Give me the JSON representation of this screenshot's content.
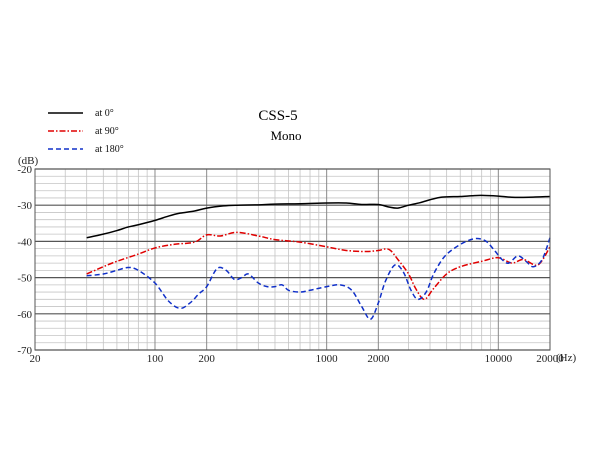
{
  "chart_data": {
    "type": "line",
    "title": "CSS-5",
    "subtitle": "Mono",
    "y_unit_label": "(dB)",
    "x_unit_label": "(Hz)",
    "x_scale": "log",
    "xlim": [
      20,
      20000
    ],
    "ylim": [
      -70,
      -20
    ],
    "grid": true,
    "legend_position": "top-left",
    "x_tick_labels": [
      {
        "value": 20,
        "label": "20"
      },
      {
        "value": 100,
        "label": "100"
      },
      {
        "value": 200,
        "label": "200"
      },
      {
        "value": 1000,
        "label": "1000"
      },
      {
        "value": 2000,
        "label": "2000"
      },
      {
        "value": 10000,
        "label": "10000"
      },
      {
        "value": 20000,
        "label": "20000"
      }
    ],
    "y_tick_labels": [
      {
        "value": -20,
        "label": "-20"
      },
      {
        "value": -30,
        "label": "-30"
      },
      {
        "value": -40,
        "label": "-40"
      },
      {
        "value": -50,
        "label": "-50"
      },
      {
        "value": -60,
        "label": "-60"
      },
      {
        "value": -70,
        "label": "-70"
      }
    ],
    "series": [
      {
        "name": "at 0°",
        "color": "#000000",
        "style": "solid",
        "points": [
          [
            40,
            -39.0
          ],
          [
            50,
            -38.0
          ],
          [
            60,
            -37.0
          ],
          [
            70,
            -36.0
          ],
          [
            80,
            -35.4
          ],
          [
            100,
            -34.2
          ],
          [
            120,
            -33.0
          ],
          [
            140,
            -32.2
          ],
          [
            170,
            -31.6
          ],
          [
            200,
            -30.8
          ],
          [
            250,
            -30.2
          ],
          [
            300,
            -30.0
          ],
          [
            400,
            -29.9
          ],
          [
            500,
            -29.7
          ],
          [
            700,
            -29.6
          ],
          [
            1000,
            -29.4
          ],
          [
            1300,
            -29.4
          ],
          [
            1600,
            -29.8
          ],
          [
            2000,
            -29.8
          ],
          [
            2300,
            -30.5
          ],
          [
            2600,
            -30.8
          ],
          [
            3000,
            -30.0
          ],
          [
            3500,
            -29.3
          ],
          [
            4000,
            -28.5
          ],
          [
            4500,
            -27.9
          ],
          [
            5000,
            -27.7
          ],
          [
            6000,
            -27.6
          ],
          [
            7000,
            -27.4
          ],
          [
            8000,
            -27.3
          ],
          [
            10000,
            -27.5
          ],
          [
            12000,
            -27.8
          ],
          [
            15000,
            -27.8
          ],
          [
            20000,
            -27.6
          ]
        ]
      },
      {
        "name": "at 90°",
        "color": "#e00000",
        "style": "dash-dot",
        "points": [
          [
            40,
            -49.0
          ],
          [
            50,
            -47.0
          ],
          [
            60,
            -45.5
          ],
          [
            80,
            -43.5
          ],
          [
            100,
            -41.8
          ],
          [
            130,
            -40.8
          ],
          [
            170,
            -40.2
          ],
          [
            200,
            -38.2
          ],
          [
            240,
            -38.5
          ],
          [
            300,
            -37.5
          ],
          [
            400,
            -38.5
          ],
          [
            500,
            -39.5
          ],
          [
            700,
            -40.2
          ],
          [
            1000,
            -41.5
          ],
          [
            1300,
            -42.5
          ],
          [
            1700,
            -42.8
          ],
          [
            2000,
            -42.5
          ],
          [
            2300,
            -42.2
          ],
          [
            2600,
            -45.0
          ],
          [
            3000,
            -49.0
          ],
          [
            3300,
            -53.0
          ],
          [
            3700,
            -56.0
          ],
          [
            4200,
            -53.0
          ],
          [
            5000,
            -49.0
          ],
          [
            6000,
            -47.0
          ],
          [
            8000,
            -45.5
          ],
          [
            10000,
            -44.5
          ],
          [
            12000,
            -46.0
          ],
          [
            14000,
            -45.0
          ],
          [
            17000,
            -46.5
          ],
          [
            20000,
            -41.5
          ]
        ]
      },
      {
        "name": "at 180°",
        "color": "#1030c8",
        "style": "dashed",
        "points": [
          [
            40,
            -49.5
          ],
          [
            50,
            -49.0
          ],
          [
            60,
            -48.0
          ],
          [
            70,
            -47.2
          ],
          [
            80,
            -48.0
          ],
          [
            100,
            -51.5
          ],
          [
            120,
            -56.5
          ],
          [
            140,
            -58.5
          ],
          [
            160,
            -57.0
          ],
          [
            180,
            -54.5
          ],
          [
            200,
            -52.5
          ],
          [
            230,
            -47.5
          ],
          [
            260,
            -48.0
          ],
          [
            290,
            -50.5
          ],
          [
            320,
            -50.0
          ],
          [
            350,
            -49.0
          ],
          [
            400,
            -51.5
          ],
          [
            450,
            -52.5
          ],
          [
            500,
            -52.5
          ],
          [
            550,
            -52.0
          ],
          [
            600,
            -53.5
          ],
          [
            700,
            -54.0
          ],
          [
            800,
            -53.5
          ],
          [
            1000,
            -52.5
          ],
          [
            1200,
            -52.0
          ],
          [
            1400,
            -53.5
          ],
          [
            1600,
            -58.0
          ],
          [
            1800,
            -61.5
          ],
          [
            2000,
            -57.0
          ],
          [
            2200,
            -51.0
          ],
          [
            2500,
            -46.5
          ],
          [
            2800,
            -48.5
          ],
          [
            3100,
            -53.5
          ],
          [
            3400,
            -56.0
          ],
          [
            3800,
            -54.0
          ],
          [
            4200,
            -49.0
          ],
          [
            4800,
            -44.5
          ],
          [
            5500,
            -42.0
          ],
          [
            6500,
            -40.0
          ],
          [
            7500,
            -39.2
          ],
          [
            8500,
            -40.0
          ],
          [
            9500,
            -42.5
          ],
          [
            10500,
            -45.0
          ],
          [
            11500,
            -46.0
          ],
          [
            13000,
            -44.0
          ],
          [
            14500,
            -45.5
          ],
          [
            16000,
            -47.0
          ],
          [
            18000,
            -45.0
          ],
          [
            20000,
            -39.0
          ]
        ]
      }
    ]
  }
}
